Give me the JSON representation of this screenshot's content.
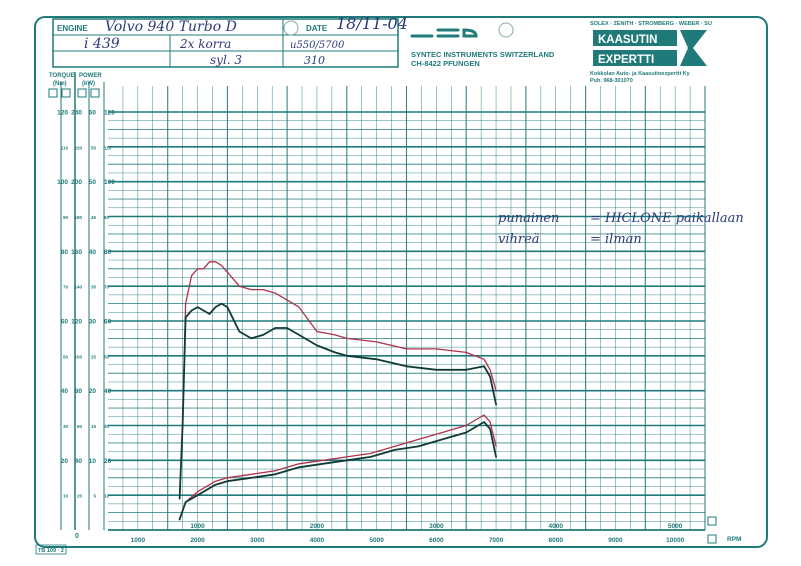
{
  "header": {
    "engine_label": "ENGINE",
    "engine_value": "Volvo 940 Turbo D",
    "date_label": "DATE",
    "date_value": "18/11-04",
    "row2": [
      "i 439",
      "2x korra",
      "u550/5700"
    ],
    "row3": [
      "",
      "syl. 3",
      "310"
    ],
    "manufacturer_line1": "SYNTEC  INSTRUMENTS  SWITZERLAND",
    "manufacturer_line2": "CH-8422  PFUNGEN",
    "brands": "SOLEX · ZENITH · STROMBERG · WEBER · SU",
    "logo_line1": "KAASUTIN",
    "logo_line2": "EXPERTTI",
    "company": "Kokkolan Auto- ja Kaasutinexpertti Ky",
    "phone": "Puh. 968-301070"
  },
  "form_code": "TB 109 · 2",
  "colors": {
    "grid": "#1f7a79",
    "red_run": "#b0304a",
    "dark_run": "#103a35",
    "ink": "#2c3a7a"
  },
  "annotations": [
    {
      "left": "punainen",
      "right": "= HICLONE paikallaan"
    },
    {
      "left": "vihreä",
      "right": "= ilman"
    }
  ],
  "chart_data": {
    "type": "line",
    "title": "",
    "y_axis_headers": [
      "TORQUE",
      "(Nm)",
      "POWER",
      "(kW)"
    ],
    "y_scale_columns": [
      {
        "name": "Nm 1",
        "ticks": [
          120,
          110,
          100,
          90,
          80,
          70,
          60,
          50,
          40,
          30,
          20,
          10
        ]
      },
      {
        "name": "Nm 2",
        "ticks": [
          240,
          220,
          200,
          180,
          160,
          140,
          120,
          100,
          80,
          60,
          40,
          20
        ]
      },
      {
        "name": "kW 1",
        "ticks": [
          60,
          55,
          50,
          45,
          40,
          35,
          30,
          25,
          20,
          15,
          10,
          5
        ]
      },
      {
        "name": "kW 2",
        "ticks": [
          120,
          110,
          100,
          90,
          80,
          70,
          60,
          50,
          40,
          30,
          20,
          10
        ]
      }
    ],
    "x_axis_label": "RPM",
    "x_ticks_row1": [
      1000,
      2000,
      3000,
      4000,
      5000
    ],
    "x_ticks_row2": [
      1000,
      2000,
      3000,
      4000,
      5000,
      6000,
      7000,
      8000,
      9000,
      10000
    ],
    "x_unit": "rpm",
    "y_unit": "kW (right scale 0-120)",
    "xlim": [
      0,
      10000
    ],
    "ylim": [
      0,
      120
    ],
    "series": [
      {
        "name": "punainen",
        "kind": "torque",
        "color": "#b0304a",
        "x": [
          1200,
          1250,
          1300,
          1400,
          1500,
          1600,
          1700,
          1800,
          1900,
          2000,
          2200,
          2400,
          2600,
          2800,
          3000,
          3200,
          3500,
          3800,
          4000,
          4500,
          5000,
          5500,
          6000,
          6300,
          6400,
          6500
        ],
        "y": [
          9,
          30,
          65,
          73,
          75,
          75,
          77,
          77,
          76,
          74,
          70,
          69,
          69,
          68,
          66,
          64,
          57,
          56,
          55,
          54,
          52,
          52,
          51,
          49,
          46,
          40
        ]
      },
      {
        "name": "vihreä",
        "kind": "torque",
        "color": "#103a35",
        "x": [
          1200,
          1250,
          1300,
          1400,
          1500,
          1600,
          1700,
          1800,
          1900,
          2000,
          2200,
          2400,
          2600,
          2800,
          3000,
          3200,
          3500,
          3800,
          4000,
          4500,
          5000,
          5500,
          6000,
          6300,
          6400,
          6500
        ],
        "y": [
          9,
          30,
          61,
          63,
          64,
          63,
          62,
          64,
          65,
          64,
          57,
          55,
          56,
          58,
          58,
          56,
          53,
          51,
          50,
          49,
          47,
          46,
          46,
          47,
          44,
          36
        ]
      },
      {
        "name": "punainen",
        "kind": "power",
        "color": "#b0304a",
        "x": [
          1200,
          1300,
          1500,
          1800,
          2000,
          2400,
          2800,
          3200,
          3600,
          4000,
          4400,
          4800,
          5200,
          5600,
          6000,
          6200,
          6300,
          6400,
          6500
        ],
        "y": [
          3,
          8,
          11,
          14,
          15,
          16,
          17,
          19,
          20,
          21,
          22,
          24,
          26,
          28,
          30,
          32,
          33,
          31,
          24
        ]
      },
      {
        "name": "vihreä",
        "kind": "power",
        "color": "#103a35",
        "x": [
          1200,
          1300,
          1500,
          1800,
          2000,
          2400,
          2800,
          3200,
          3600,
          4000,
          4400,
          4800,
          5200,
          5600,
          6000,
          6200,
          6300,
          6400,
          6500
        ],
        "y": [
          3,
          8,
          10,
          13,
          14,
          15,
          16,
          18,
          19,
          20,
          21,
          23,
          24,
          26,
          28,
          30,
          31,
          29,
          21
        ]
      }
    ]
  }
}
